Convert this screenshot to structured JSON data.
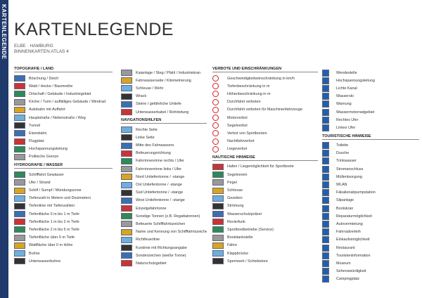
{
  "header": {
    "side_label": "KARTENLEGENDE",
    "title": "KARTENLEGENDE",
    "subtitle": [
      "ELBE · HAMBURG",
      "BINNENKARTEN ATLAS 4"
    ]
  },
  "columns": [
    {
      "sections": [
        {
          "heading": "TOPOGRAFIE / LAND",
          "items": [
            "Böschung / Deich",
            "Wald / Hecke / Baumreihe",
            "Ortschaft / Gebäude / Industriegebiet",
            "Kirche / Turm / auffälliges Gebäude / Windrad",
            "Autobahn mit Auffahrt",
            "Hauptstraße / Nebenstraße / Weg",
            "Tunnel",
            "Eisenbahn",
            "Flugplatz",
            "Hochspannungsleitung",
            "Politische Grenze"
          ]
        },
        {
          "heading": "HYDROGRAFIE / WASSER",
          "items": [
            "Schifffahrt Gewässer",
            "Ufer / Strand",
            "Schilf / Sumpf / Mündungszone",
            "Tiefenzahl in Metern und Dezimetern",
            "Tiefenlinie mit Tiefenzahlen",
            "Tiefenfläche 0 m bis 1 m Tiefe",
            "Tiefenfläche 1 m bis 2 m Tiefe",
            "Tiefenfläche 2 m bis 5 m Tiefe",
            "Tiefenfläche über 5 m Tiefe",
            "Wattfläche über 0 m Höhe",
            "Buhne",
            "Unterwasserbuhne"
          ]
        }
      ]
    },
    {
      "sections": [
        {
          "items": [
            "Kaianlage / Steg / Pfahl / Industriekran",
            "Fahrwasserseite / Kilometrierung",
            "Schleuse / Wehr",
            "Wrack",
            "Steine / gefährliche Untiefe",
            "Unterwasserkabel / Rohrleitung"
          ]
        },
        {
          "heading": "NAVIGATIONSHILFEN",
          "items": [
            "Rechte Seite",
            "Linke Seite",
            "Mitte des Fahrwassers",
            "Befeuerungsrichtung",
            "Fahrrinnenrinne rechts / Ufer",
            "Fahrrinnenrinne links / Ufer",
            "Nord Untiefentonne / -stange",
            "Ost Untiefentonne / -stange",
            "Süd Untiefentonne / -stange",
            "West Untiefentonne / -stange",
            "Einzelgefahrtonne",
            "Sonstige Tonnen (z.B. Regattatonnen)",
            "Befeuerte Schifffahrtszeichen",
            "Name und Kennung von Schifffahrtszeichen",
            "Richtfeuerlinie",
            "Kurslinie mit Richtungsangabe",
            "Sonderzeichen (weiße Tonne)",
            "Naturschutzgebiet"
          ]
        }
      ]
    },
    {
      "sections": [
        {
          "heading": "VERBOTE UND EINSCHRÄNKUNGEN",
          "items": [
            "Geschwindigkeitseinschränkung in km/h",
            "Tiefenbeschränkung in m",
            "Höhenbeschränkung in m",
            "Durchfahrt verboten",
            "Durchfahrt verboten für Maschinenfahrzeuge",
            "Motorverbot",
            "Segelverbot",
            "Verbot von Sportbooten",
            "Nachtfahrverbot",
            "Liegeverbot"
          ]
        },
        {
          "heading": "NAUTISCHE HINWEISE",
          "items": [
            "Hafen / Liegemöglichkeit für Sportboote",
            "Segelverein",
            "Pegel",
            "Schleuse",
            "Gezeiten",
            "Strömung",
            "Wasserschutzpolizei",
            "Revierfunk",
            "Sportbootbetriebe (Service)",
            "Bootstankstelle",
            "Fähre",
            "Klappbrücke",
            "Sperrwerk / Schiebetore"
          ]
        }
      ]
    },
    {
      "sections": [
        {
          "items": [
            "Wendestelle",
            "Hochspannungsleitung",
            "Lichte Kanal",
            "Wasserski",
            "Warnung",
            "Wassermotorradgebiet",
            "Rechtes Ufer",
            "Linkes Ufer"
          ]
        },
        {
          "heading": "TOURISTISCHE HINWEISE",
          "items": [
            "Toilette",
            "Dusche",
            "Trinkwasser",
            "Stromanschluss",
            "Müllentsorgung",
            "WLAN",
            "Fäkalienabpumpstation",
            "Slipanlage",
            "Bootskran",
            "Reparaturmöglichkeit",
            "Autovermietung",
            "Fahrradverleih",
            "Einkaufsmöglichkeit",
            "Restaurant",
            "Touristeninformation",
            "Museum",
            "Sehenswürdigkeit",
            "Campingplatz"
          ]
        }
      ]
    }
  ]
}
